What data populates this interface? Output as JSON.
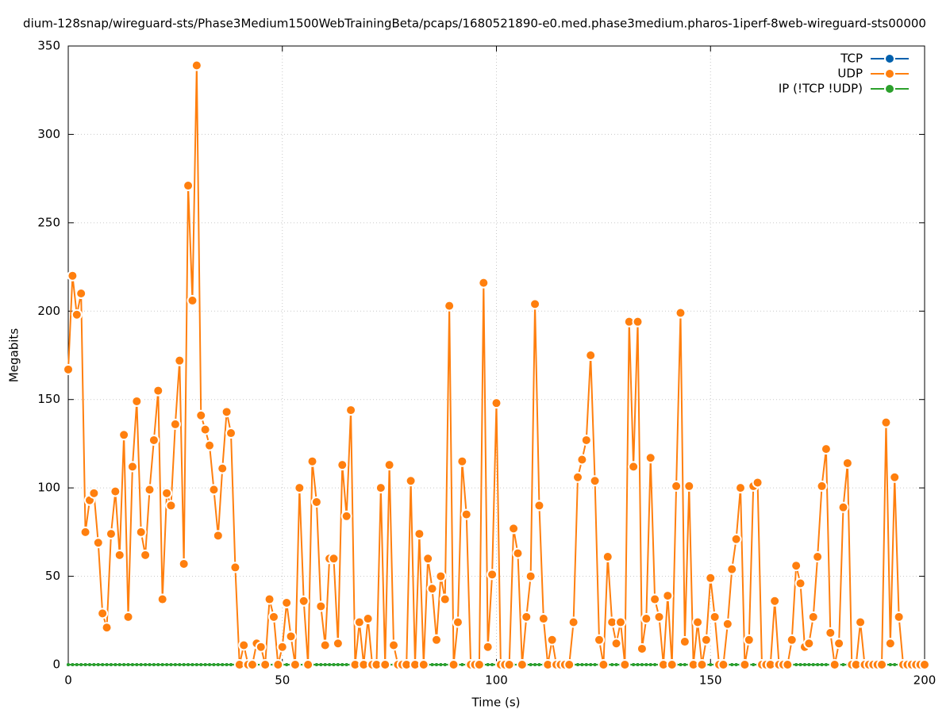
{
  "chart_data": {
    "type": "line",
    "title": "dium-128snap/wireguard-sts/Phase3Medium1500WebTrainingBeta/pcaps/1680521890-e0.med.phase3medium.pharos-1iperf-8web-wireguard-sts00000",
    "x_label": "Time (s)",
    "y_label": "Megabits",
    "x": [
      0,
      1,
      2,
      3,
      4,
      5,
      6,
      7,
      8,
      9,
      10,
      11,
      12,
      13,
      14,
      15,
      16,
      17,
      18,
      19,
      20,
      21,
      22,
      23,
      24,
      25,
      26,
      27,
      28,
      29,
      30,
      31,
      32,
      33,
      34,
      35,
      36,
      37,
      38,
      39,
      40,
      41,
      42,
      43,
      44,
      45,
      46,
      47,
      48,
      49,
      50,
      51,
      52,
      53,
      54,
      55,
      56,
      57,
      58,
      59,
      60,
      61,
      62,
      63,
      64,
      65,
      66,
      67,
      68,
      69,
      70,
      71,
      72,
      73,
      74,
      75,
      76,
      77,
      78,
      79,
      80,
      81,
      82,
      83,
      84,
      85,
      86,
      87,
      88,
      89,
      90,
      91,
      92,
      93,
      94,
      95,
      96,
      97,
      98,
      99,
      100,
      101,
      102,
      103,
      104,
      105,
      106,
      107,
      108,
      109,
      110,
      111,
      112,
      113,
      114,
      115,
      116,
      117,
      118,
      119,
      120,
      121,
      122,
      123,
      124,
      125,
      126,
      127,
      128,
      129,
      130,
      131,
      132,
      133,
      134,
      135,
      136,
      137,
      138,
      139,
      140,
      141,
      142,
      143,
      144,
      145,
      146,
      147,
      148,
      149,
      150,
      151,
      152,
      153,
      154,
      155,
      156,
      157,
      158,
      159,
      160,
      161,
      162,
      163,
      164,
      165,
      166,
      167,
      168,
      169,
      170,
      171,
      172,
      173,
      174,
      175,
      176,
      177,
      178,
      179,
      180,
      181,
      182,
      183,
      184,
      185,
      186,
      187,
      188,
      189,
      190,
      191,
      192,
      193,
      194,
      195,
      196,
      197,
      198,
      199,
      200
    ],
    "series": [
      {
        "name": "TCP",
        "color": "#0060ad",
        "values": [
          0,
          0,
          0,
          0,
          0,
          0,
          0,
          0,
          0,
          0,
          0,
          0,
          0,
          0,
          0,
          0,
          0,
          0,
          0,
          0,
          0,
          0,
          0,
          0,
          0,
          0,
          0,
          0,
          0,
          0,
          0,
          0,
          0,
          0,
          0,
          0,
          0,
          0,
          0,
          0,
          0,
          0,
          0,
          0,
          0,
          0,
          0,
          0,
          0,
          0,
          0,
          0,
          0,
          0,
          0,
          0,
          0,
          0,
          0,
          0,
          0,
          0,
          0,
          0,
          0,
          0,
          0,
          0,
          0,
          0,
          0,
          0,
          0,
          0,
          0,
          0,
          0,
          0,
          0,
          0,
          0,
          0,
          0,
          0,
          0,
          0,
          0,
          0,
          0,
          0,
          0,
          0,
          0,
          0,
          0,
          0,
          0,
          0,
          0,
          0,
          0,
          0,
          0,
          0,
          0,
          0,
          0,
          0,
          0,
          0,
          0,
          0,
          0,
          0,
          0,
          0,
          0,
          0,
          0,
          0,
          0,
          0,
          0,
          0,
          0,
          0,
          0,
          0,
          0,
          0,
          0,
          0,
          0,
          0,
          0,
          0,
          0,
          0,
          0,
          0,
          0,
          0,
          0,
          0,
          0,
          0,
          0,
          0,
          0,
          0,
          0,
          0,
          0,
          0,
          0,
          0,
          0,
          0,
          0,
          0,
          0,
          0,
          0,
          0,
          0,
          0,
          0,
          0,
          0,
          0,
          0,
          0,
          0,
          0,
          0,
          0,
          0,
          0,
          0,
          0,
          0,
          0,
          0,
          0,
          0,
          0,
          0,
          0,
          0,
          0,
          0,
          0,
          0,
          0,
          0,
          0,
          0,
          0,
          0,
          0,
          0
        ]
      },
      {
        "name": "UDP",
        "color": "#ff7f0e",
        "values": [
          167,
          220,
          198,
          210,
          75,
          93,
          97,
          69,
          29,
          21,
          74,
          98,
          62,
          130,
          27,
          112,
          149,
          75,
          62,
          99,
          127,
          155,
          37,
          97,
          90,
          136,
          172,
          57,
          271,
          206,
          339,
          141,
          133,
          124,
          99,
          73,
          111,
          143,
          131,
          55,
          0,
          11,
          0,
          0,
          12,
          10,
          0,
          37,
          27,
          0,
          10,
          35,
          16,
          0,
          100,
          36,
          0,
          115,
          92,
          33,
          11,
          60,
          60,
          12,
          113,
          84,
          144,
          0,
          24,
          0,
          26,
          0,
          0,
          100,
          0,
          113,
          11,
          0,
          0,
          0,
          104,
          0,
          74,
          0,
          60,
          43,
          14,
          50,
          37,
          203,
          0,
          24,
          115,
          85,
          0,
          0,
          0,
          216,
          10,
          51,
          148,
          0,
          0,
          0,
          77,
          63,
          0,
          27,
          50,
          204,
          90,
          26,
          0,
          14,
          0,
          0,
          0,
          0,
          24,
          106,
          116,
          127,
          175,
          104,
          14,
          0,
          61,
          24,
          12,
          24,
          0,
          194,
          112,
          194,
          9,
          26,
          117,
          37,
          27,
          0,
          39,
          0,
          101,
          199,
          13,
          101,
          0,
          24,
          0,
          14,
          49,
          27,
          0,
          0,
          23,
          54,
          71,
          100,
          0,
          14,
          101,
          103,
          0,
          0,
          0,
          36,
          0,
          0,
          0,
          14,
          56,
          46,
          10,
          12,
          27,
          61,
          101,
          122,
          18,
          0,
          12,
          89,
          114,
          0,
          0,
          24,
          0,
          0,
          0,
          0,
          0,
          137,
          12,
          106,
          27,
          0,
          0,
          0,
          0,
          0,
          0
        ]
      },
      {
        "name": "IP (!TCP  !UDP)",
        "color": "#2ca02c",
        "values": [
          0,
          0,
          0,
          0,
          0,
          0,
          0,
          0,
          0,
          0,
          0,
          0,
          0,
          0,
          0,
          0,
          0,
          0,
          0,
          0,
          0,
          0,
          0,
          0,
          0,
          0,
          0,
          0,
          0,
          0,
          0,
          0,
          0,
          0,
          0,
          0,
          0,
          0,
          0,
          0,
          0,
          0,
          0,
          0,
          0,
          0,
          0,
          0,
          0,
          0,
          0,
          0,
          0,
          0,
          0,
          0,
          0,
          0,
          0,
          0,
          0,
          0,
          0,
          0,
          0,
          0,
          0,
          0,
          0,
          0,
          0,
          0,
          0,
          0,
          0,
          0,
          0,
          0,
          0,
          0,
          0,
          0,
          0,
          0,
          0,
          0,
          0,
          0,
          0,
          0,
          0,
          0,
          0,
          0,
          0,
          0,
          0,
          0,
          0,
          0,
          0,
          0,
          0,
          0,
          0,
          0,
          0,
          0,
          0,
          0,
          0,
          0,
          0,
          0,
          0,
          0,
          0,
          0,
          0,
          0,
          0,
          0,
          0,
          0,
          0,
          0,
          0,
          0,
          0,
          0,
          0,
          0,
          0,
          0,
          0,
          0,
          0,
          0,
          0,
          0,
          0,
          0,
          0,
          0,
          0,
          0,
          0,
          0,
          0,
          0,
          0,
          0,
          0,
          0,
          0,
          0,
          0,
          0,
          0,
          0,
          0,
          0,
          0,
          0,
          0,
          0,
          0,
          0,
          0,
          0,
          0,
          0,
          0,
          0,
          0,
          0,
          0,
          0,
          0,
          0,
          0,
          0,
          0,
          0,
          0,
          0,
          0,
          0,
          0,
          0,
          0,
          0,
          0,
          0,
          0,
          0,
          0,
          0,
          0,
          0,
          0
        ]
      }
    ],
    "xlim": [
      0,
      200
    ],
    "xticks": [
      0,
      50,
      100,
      150,
      200
    ],
    "ylim": [
      0,
      350
    ],
    "yticks": [
      0,
      50,
      100,
      150,
      200,
      250,
      300,
      350
    ],
    "grid": true,
    "legend": "top-right"
  }
}
